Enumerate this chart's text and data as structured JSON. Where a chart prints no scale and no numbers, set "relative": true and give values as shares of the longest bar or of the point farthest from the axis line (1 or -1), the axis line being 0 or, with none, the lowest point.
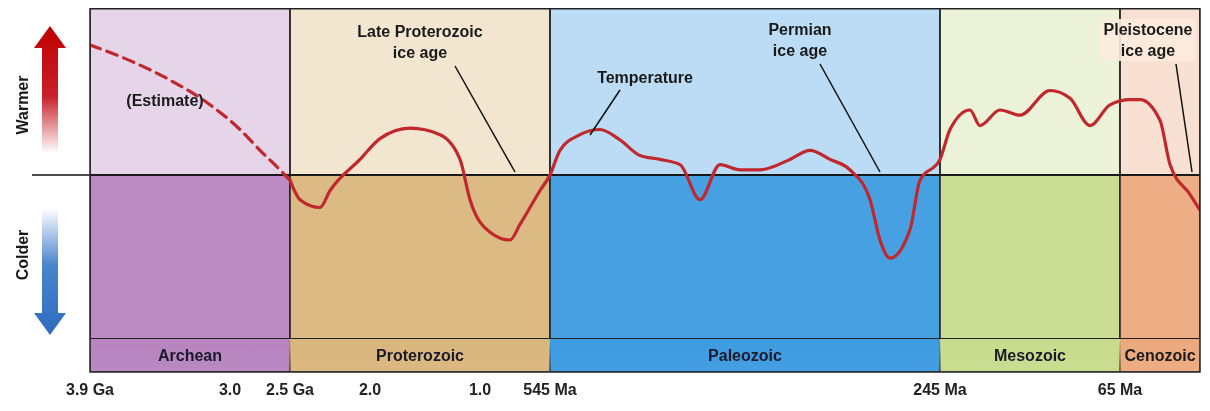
{
  "chart_data": {
    "type": "line",
    "relative": true,
    "marker": "none",
    "legend": false,
    "grid": false,
    "tick_labels": "x",
    "categories": [
      "3.9 Ga",
      null,
      null,
      null,
      null,
      null,
      null,
      null,
      null,
      null,
      null,
      null,
      null,
      null,
      "3.0",
      null,
      null,
      null,
      null,
      null,
      "2.5 Ga",
      null,
      null,
      null,
      null,
      null,
      null,
      null,
      "2.0",
      null,
      null,
      null,
      null,
      null,
      null,
      null,
      null,
      null,
      null,
      "1.0",
      null,
      null,
      null,
      null,
      null,
      null,
      "545 Ma",
      null,
      null,
      null,
      null,
      null,
      null,
      null,
      null,
      null,
      null,
      null,
      null,
      null,
      null,
      null,
      null,
      null,
      null,
      null,
      null,
      null,
      null,
      null,
      null,
      null,
      null,
      null,
      null,
      null,
      null,
      null,
      null,
      null,
      null,
      null,
      null,
      null,
      null,
      "245 Ma",
      null,
      null,
      null,
      null,
      null,
      null,
      null,
      null,
      null,
      null,
      null,
      null,
      null,
      null,
      null,
      null,
      null,
      "65 Ma",
      null,
      null,
      null,
      null,
      null,
      null,
      null,
      null
    ],
    "series": [
      {
        "color": "#c0282d",
        "line_style": "dashed",
        "values": [
          1.0,
          null,
          null,
          null,
          0.88,
          null,
          null,
          null,
          0.73,
          null,
          null,
          null,
          0.54,
          null,
          null,
          0.35,
          null,
          0.19,
          null,
          0.04,
          -0.04,
          null,
          null,
          null,
          null,
          null,
          null,
          null,
          null,
          null,
          null,
          null,
          null,
          null,
          null,
          null,
          null,
          null,
          null,
          null,
          null,
          null,
          null,
          null,
          null,
          null,
          null,
          null,
          null,
          null,
          null,
          null,
          null,
          null,
          null,
          null,
          null,
          null,
          null,
          null,
          null,
          null,
          null,
          null,
          null,
          null,
          null,
          null,
          null,
          null,
          null,
          null,
          null,
          null,
          null,
          null,
          null,
          null,
          null,
          null,
          null,
          null,
          null,
          null,
          null,
          null,
          null,
          null,
          null,
          null,
          null,
          null,
          null,
          null,
          null,
          null,
          null,
          null,
          null,
          null,
          null,
          null,
          null,
          null,
          null,
          null,
          null,
          null,
          null,
          null,
          null,
          null
        ]
      },
      {
        "color": "#c0282d",
        "line_style": "solid",
        "values": [
          null,
          null,
          null,
          null,
          null,
          null,
          null,
          null,
          null,
          null,
          null,
          null,
          null,
          null,
          null,
          null,
          null,
          null,
          null,
          null,
          -0.04,
          -0.19,
          null,
          -0.25,
          -0.12,
          null,
          null,
          0.12,
          null,
          0.28,
          null,
          null,
          0.36,
          null,
          null,
          0.31,
          null,
          0.12,
          -0.19,
          null,
          -0.44,
          null,
          -0.5,
          -0.38,
          null,
          -0.12,
          0,
          0.19,
          null,
          0.31,
          null,
          0.35,
          null,
          0.27,
          null,
          0.15,
          null,
          0.12,
          null,
          0.08,
          null,
          -0.19,
          null,
          0.08,
          null,
          0.04,
          null,
          0.04,
          null,
          null,
          0.12,
          null,
          0.19,
          null,
          0.12,
          null,
          0.04,
          null,
          -0.19,
          -0.5,
          -0.64,
          null,
          -0.42,
          -0.04,
          null,
          0.12,
          0.35,
          null,
          0.5,
          0.38,
          null,
          0.5,
          null,
          0.46,
          null,
          null,
          0.65,
          null,
          0.59,
          null,
          0.38,
          null,
          0.54,
          null,
          0.58,
          0.58,
          null,
          0.42,
          0.08,
          null,
          -0.15,
          -0.27
        ]
      }
    ],
    "bands": [
      {
        "axis": "x",
        "from": "3.9 Ga",
        "to": "2.5 Ga",
        "label": "Archean",
        "color": "#b784c0"
      },
      {
        "axis": "x",
        "from": "2.5 Ga",
        "to": "545 Ma",
        "label": "Proterozoic",
        "color": "#d9b67c"
      },
      {
        "axis": "x",
        "from": "545 Ma",
        "to": "245 Ma",
        "label": "Paleozoic",
        "color": "#3d9be0"
      },
      {
        "axis": "x",
        "from": "245 Ma",
        "to": "65 Ma",
        "label": "Mesozoic",
        "color": "#c8db8c"
      }
    ],
    "annotations": [
      "(Estimate)",
      "Late Proterozoic\nice age",
      "Temperature",
      "Permian\nice age",
      "Pleistocene\nice age",
      "Warmer",
      "Colder",
      "Cenozoic"
    ]
  }
}
